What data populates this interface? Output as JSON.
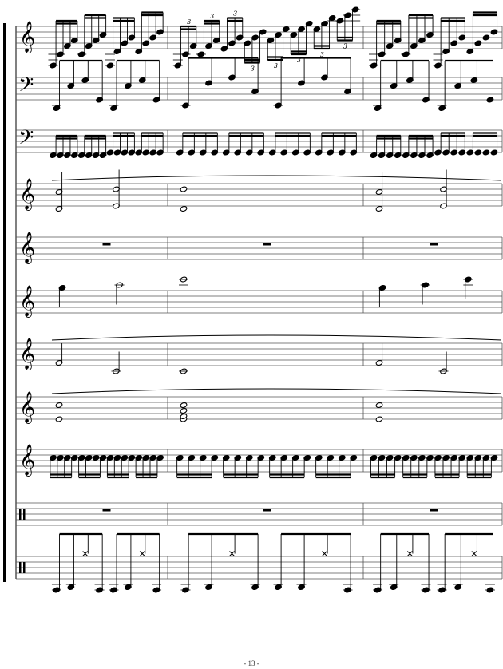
{
  "page": {
    "number_label": "- 13 -"
  },
  "colors": {
    "ink": "#000000",
    "staff_line": "#555555",
    "background": "#ffffff"
  },
  "system": {
    "measures": 3,
    "staves": [
      {
        "clef": "treble",
        "measures": [
          {
            "type": "sixteenth",
            "notes": [
              -6,
              -2,
              1,
              3,
              -2,
              1,
              3,
              5,
              -6,
              -1,
              2,
              4,
              -1,
              2,
              4,
              6
            ]
          },
          {
            "type": "sixteenth",
            "tuplet": "3",
            "notes": [
              -6,
              -2,
              1,
              -2,
              1,
              3,
              0,
              2,
              4,
              2,
              4,
              6,
              3,
              5,
              7,
              5,
              7,
              9,
              7,
              9,
              11,
              10,
              12,
              14
            ]
          },
          {
            "type": "sixteenth",
            "notes": [
              -6,
              -2,
              1,
              3,
              -2,
              1,
              3,
              5,
              -6,
              -1,
              2,
              4,
              -1,
              2,
              4,
              6
            ]
          }
        ]
      },
      {
        "clef": "bass",
        "measures": [
          {
            "type": "eighth",
            "notes": [
              -3,
              5,
              7,
              0,
              -3,
              5,
              7,
              0
            ]
          },
          {
            "type": "eighth",
            "notes": [
              -2,
              6,
              8,
              3,
              -2,
              6,
              8,
              3
            ]
          },
          {
            "type": "eighth",
            "notes": [
              -3,
              5,
              7,
              0,
              -3,
              5,
              7,
              0
            ]
          }
        ]
      },
      {
        "clef": "bass",
        "measures": [
          {
            "type": "sixteenth",
            "notes": [
              -1,
              -1,
              -1,
              -1,
              -1,
              -1,
              -1,
              -1,
              0,
              0,
              0,
              0,
              0,
              0,
              0,
              0
            ]
          },
          {
            "type": "sixteenth",
            "notes": [
              0,
              0,
              0,
              0,
              0,
              0,
              0,
              0,
              0,
              0,
              0,
              0,
              0,
              0,
              0,
              0
            ]
          },
          {
            "type": "sixteenth",
            "notes": [
              -1,
              -1,
              -1,
              -1,
              -1,
              -1,
              -1,
              -1,
              0,
              0,
              0,
              0,
              0,
              0,
              0,
              0
            ]
          }
        ]
      },
      {
        "clef": "treble",
        "slur": true,
        "measures": [
          {
            "type": "half",
            "chords": [
              [
                -1,
                5
              ],
              [
                0,
                6
              ]
            ]
          },
          {
            "type": "whole",
            "chords": [
              [
                -1,
                6
              ]
            ]
          },
          {
            "type": "half",
            "chords": [
              [
                -1,
                5
              ],
              [
                0,
                6
              ]
            ]
          }
        ]
      },
      {
        "clef": "treble",
        "measures": [
          {
            "type": "rest"
          },
          {
            "type": "rest"
          },
          {
            "type": "rest"
          }
        ]
      },
      {
        "clef": "treble",
        "measures": [
          {
            "type": "mixed",
            "notes": [
              [
                9,
                "quarter"
              ],
              [
                10,
                "half"
              ]
            ]
          },
          {
            "type": "whole",
            "chords": [
              [
                12
              ]
            ]
          },
          {
            "type": "mixed",
            "notes": [
              [
                9,
                "quarter"
              ],
              [
                10,
                "quarter"
              ],
              [
                12,
                "quarter"
              ]
            ]
          }
        ]
      },
      {
        "clef": "treble",
        "slur": true,
        "measures": [
          {
            "type": "half",
            "chords": [
              [
                1
              ],
              [
                -2
              ]
            ]
          },
          {
            "type": "whole",
            "chords": [
              [
                -2
              ]
            ]
          },
          {
            "type": "half",
            "chords": [
              [
                1
              ],
              [
                -2
              ]
            ]
          }
        ]
      },
      {
        "clef": "treble",
        "slur": true,
        "measures": [
          {
            "type": "whole",
            "chords": [
              [
                0,
                5
              ]
            ]
          },
          {
            "type": "whole",
            "chords": [
              [
                0,
                1,
                3,
                5
              ]
            ]
          },
          {
            "type": "whole",
            "chords": [
              [
                0,
                5
              ]
            ]
          }
        ]
      },
      {
        "clef": "treble",
        "measures": [
          {
            "type": "sixteenth",
            "notes": [
              5,
              5,
              5,
              5,
              5,
              5,
              5,
              5,
              5,
              5,
              5,
              5,
              5,
              5,
              5,
              5
            ]
          },
          {
            "type": "sixteenth",
            "notes": [
              5,
              5,
              5,
              5,
              5,
              5,
              5,
              5,
              5,
              5,
              5,
              5,
              5,
              5,
              5,
              5
            ]
          },
          {
            "type": "sixteenth",
            "notes": [
              5,
              5,
              5,
              5,
              5,
              5,
              5,
              5,
              5,
              5,
              5,
              5,
              5,
              5,
              5,
              5
            ]
          }
        ]
      },
      {
        "clef": "percussion",
        "measures": [
          {
            "type": "rest"
          },
          {
            "type": "rest"
          },
          {
            "type": "rest"
          }
        ]
      },
      {
        "clef": "percussion",
        "measures": [
          {
            "type": "eighth",
            "notes": [
              -4,
              -3,
              9,
              -4,
              -4,
              -3,
              9,
              -4
            ]
          },
          {
            "type": "eighth",
            "notes": [
              -4,
              -3,
              9,
              -3,
              -3,
              -3,
              9,
              -4
            ]
          },
          {
            "type": "eighth",
            "notes": [
              -4,
              -3,
              9,
              -4,
              -4,
              -3,
              9,
              -4
            ]
          }
        ]
      }
    ]
  }
}
